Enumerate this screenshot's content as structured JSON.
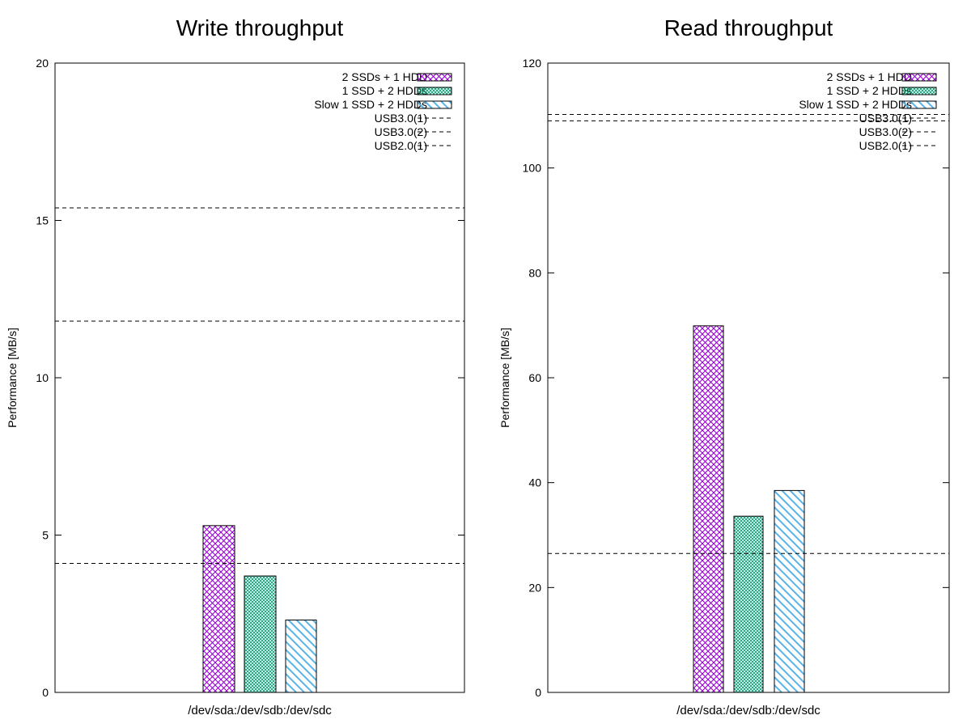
{
  "chart_data": [
    {
      "type": "bar",
      "title": "Write throughput",
      "xlabel": "/dev/sda:/dev/sdb:/dev/sdc",
      "ylabel": "Performance [MB/s]",
      "ylim": [
        0,
        20
      ],
      "yticks": [
        "0",
        "5",
        "10",
        "15",
        "20"
      ],
      "grid": false,
      "legend_position": "top-right",
      "categories": [
        "/dev/sda:/dev/sdb:/dev/sdc"
      ],
      "series": [
        {
          "name": "2 SSDs + 1 HDD",
          "values": [
            5.3
          ],
          "color": "#9400d3",
          "pattern": "crosshatch"
        },
        {
          "name": "1 SSD + 2 HDDs",
          "values": [
            3.7
          ],
          "color": "#009e73",
          "pattern": "fine-crosshatch"
        },
        {
          "name": "Slow 1 SSD + 2 HDDs",
          "values": [
            2.3
          ],
          "color": "#56b4e9",
          "pattern": "diagonal"
        }
      ],
      "reference_lines": [
        {
          "name": "USB3.0(1)",
          "value": 15.4
        },
        {
          "name": "USB3.0(2)",
          "value": 11.8
        },
        {
          "name": "USB2.0(1)",
          "value": 4.1
        }
      ]
    },
    {
      "type": "bar",
      "title": "Read throughput",
      "xlabel": "/dev/sda:/dev/sdb:/dev/sdc",
      "ylabel": "Performance [MB/s]",
      "ylim": [
        0,
        120
      ],
      "yticks": [
        "0",
        "20",
        "40",
        "60",
        "80",
        "100",
        "120"
      ],
      "grid": false,
      "legend_position": "top-right",
      "categories": [
        "/dev/sda:/dev/sdb:/dev/sdc"
      ],
      "series": [
        {
          "name": "2 SSDs + 1 HDD",
          "values": [
            69.9
          ],
          "color": "#9400d3",
          "pattern": "crosshatch"
        },
        {
          "name": "1 SSD + 2 HDDs",
          "values": [
            33.6
          ],
          "color": "#009e73",
          "pattern": "fine-crosshatch"
        },
        {
          "name": "Slow 1 SSD + 2 HDDs",
          "values": [
            38.5
          ],
          "color": "#56b4e9",
          "pattern": "diagonal"
        }
      ],
      "reference_lines": [
        {
          "name": "USB3.0(1)",
          "value": 110.2
        },
        {
          "name": "USB3.0(2)",
          "value": 109.0
        },
        {
          "name": "USB2.0(1)",
          "value": 26.5
        }
      ]
    }
  ]
}
